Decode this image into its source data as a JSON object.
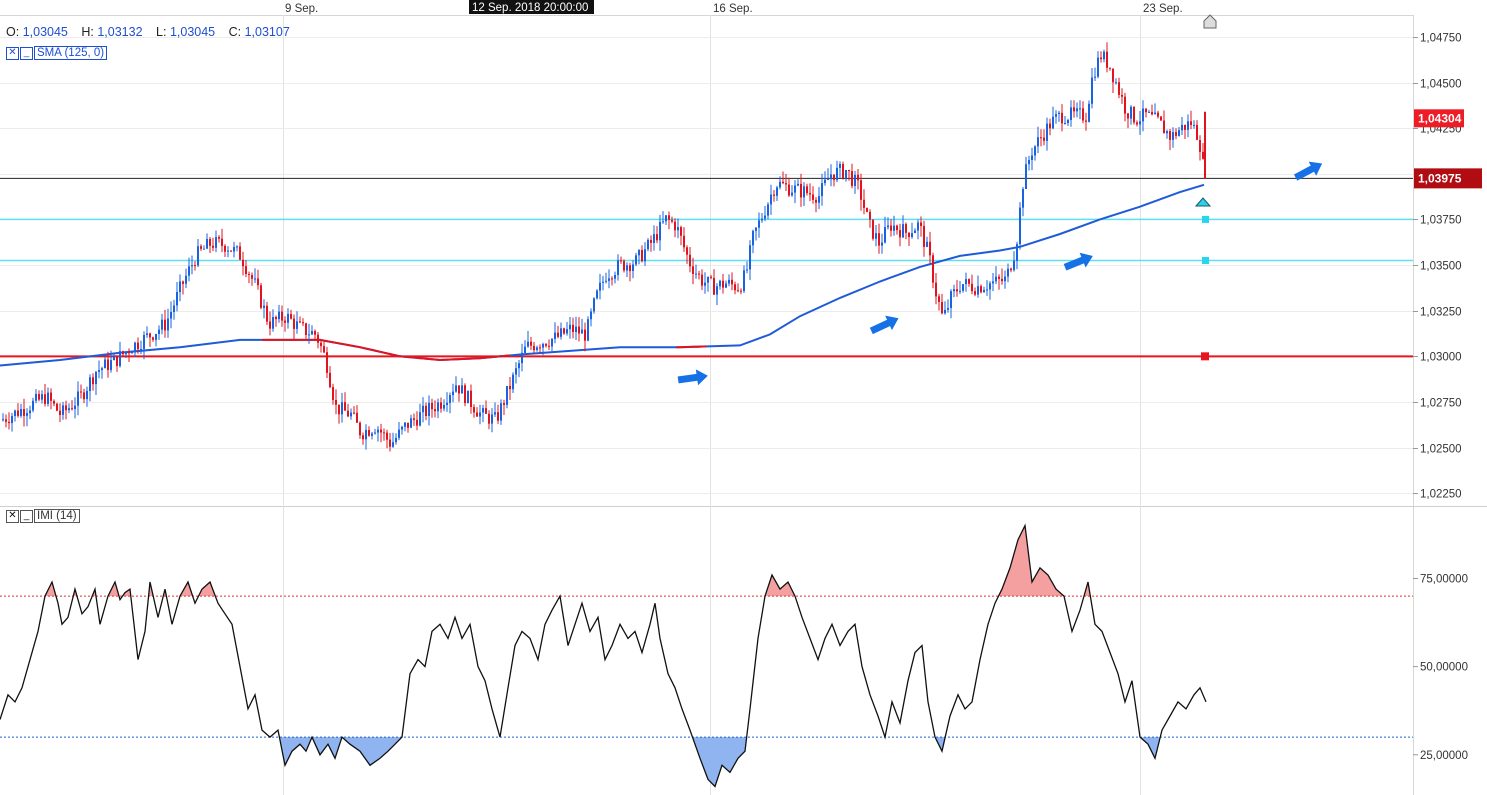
{
  "ohlc": {
    "o_label": "O:",
    "o": "1,03045",
    "h_label": "H:",
    "h": "1,03132",
    "l_label": "L:",
    "l": "1,03045",
    "c_label": "C:",
    "c": "1,03107"
  },
  "indicators": {
    "sma_label": "SMA (125, 0)",
    "imi_label": "IMI (14)",
    "close_glyph": "✕",
    "minimize_glyph": "_"
  },
  "x_axis": {
    "date_labels": [
      "9 Sep.",
      "16 Sep.",
      "23 Sep."
    ],
    "cursor_label": "12 Sep. 2018 20:00:00"
  },
  "price_axis": {
    "ticks": [
      "1,04750",
      "1,04500",
      "1,04250",
      "1,03750",
      "1,03500",
      "1,03250",
      "1,03000",
      "1,02750",
      "1,02500",
      "1,02250"
    ],
    "current_price_label": "1,04304",
    "crosshair_price_label": "1,03975"
  },
  "imi_axis": {
    "ticks": [
      "75,00000",
      "50,00000",
      "25,00000"
    ]
  },
  "colors": {
    "bull": "#1a63e0",
    "bear": "#e0141e",
    "sma": "#1f5bd8",
    "support_red": "#e8141e",
    "cyan": "#5fe0f0",
    "overbought_fill": "#f4a0a0",
    "oversold_fill": "#8fb4ef",
    "price_badge_red": "#ee1c24",
    "price_badge_dark": "#b00c12"
  },
  "chart_data": {
    "type": "candlestick",
    "symbol_timeframe": "hourly",
    "price_axis_range": [
      1.0218,
      1.0487
    ],
    "horizontal_lines": [
      {
        "price": 1.03,
        "color": "red"
      },
      {
        "price": 1.03525,
        "color": "cyan"
      },
      {
        "price": 1.0375,
        "color": "cyan"
      },
      {
        "price": 1.03975,
        "color": "black"
      }
    ],
    "price_path": [
      [
        0,
        1.0265
      ],
      [
        25,
        1.0272
      ],
      [
        45,
        1.0278
      ],
      [
        60,
        1.0268
      ],
      [
        80,
        1.0278
      ],
      [
        95,
        1.0292
      ],
      [
        115,
        1.0298
      ],
      [
        130,
        1.0305
      ],
      [
        150,
        1.0312
      ],
      [
        165,
        1.0318
      ],
      [
        180,
        1.0338
      ],
      [
        195,
        1.0355
      ],
      [
        210,
        1.0362
      ],
      [
        225,
        1.0361
      ],
      [
        240,
        1.0355
      ],
      [
        255,
        1.0338
      ],
      [
        268,
        1.0318
      ],
      [
        285,
        1.0322
      ],
      [
        300,
        1.0315
      ],
      [
        315,
        1.0312
      ],
      [
        325,
        1.0298
      ],
      [
        335,
        1.0272
      ],
      [
        350,
        1.0268
      ],
      [
        360,
        1.0258
      ],
      [
        375,
        1.0262
      ],
      [
        390,
        1.0252
      ],
      [
        405,
        1.0262
      ],
      [
        420,
        1.0268
      ],
      [
        440,
        1.0275
      ],
      [
        455,
        1.0285
      ],
      [
        465,
        1.0278
      ],
      [
        480,
        1.0268
      ],
      [
        495,
        1.0265
      ],
      [
        510,
        1.0285
      ],
      [
        525,
        1.0305
      ],
      [
        540,
        1.0308
      ],
      [
        555,
        1.031
      ],
      [
        570,
        1.0315
      ],
      [
        585,
        1.0312
      ],
      [
        595,
        1.0332
      ],
      [
        605,
        1.0345
      ],
      [
        620,
        1.035
      ],
      [
        635,
        1.0352
      ],
      [
        650,
        1.0362
      ],
      [
        665,
        1.0375
      ],
      [
        675,
        1.0372
      ],
      [
        688,
        1.0352
      ],
      [
        700,
        1.0342
      ],
      [
        712,
        1.0338
      ],
      [
        725,
        1.034
      ],
      [
        738,
        1.0338
      ],
      [
        745,
        1.0345
      ],
      [
        752,
        1.0365
      ],
      [
        765,
        1.0382
      ],
      [
        775,
        1.0395
      ],
      [
        790,
        1.0392
      ],
      [
        805,
        1.039
      ],
      [
        818,
        1.0388
      ],
      [
        830,
        1.04
      ],
      [
        845,
        1.0402
      ],
      [
        858,
        1.0392
      ],
      [
        868,
        1.0372
      ],
      [
        878,
        1.0362
      ],
      [
        890,
        1.0372
      ],
      [
        905,
        1.0368
      ],
      [
        918,
        1.0372
      ],
      [
        928,
        1.0355
      ],
      [
        935,
        1.0335
      ],
      [
        942,
        1.032
      ],
      [
        950,
        1.0332
      ],
      [
        960,
        1.034
      ],
      [
        975,
        1.0338
      ],
      [
        990,
        1.034
      ],
      [
        1005,
        1.0342
      ],
      [
        1015,
        1.036
      ],
      [
        1022,
        1.0395
      ],
      [
        1030,
        1.0412
      ],
      [
        1040,
        1.042
      ],
      [
        1050,
        1.0428
      ],
      [
        1060,
        1.0432
      ],
      [
        1072,
        1.0432
      ],
      [
        1085,
        1.0432
      ],
      [
        1092,
        1.0455
      ],
      [
        1100,
        1.0465
      ],
      [
        1108,
        1.046
      ],
      [
        1115,
        1.045
      ],
      [
        1125,
        1.0435
      ],
      [
        1135,
        1.043
      ],
      [
        1145,
        1.0432
      ],
      [
        1158,
        1.0428
      ],
      [
        1170,
        1.042
      ],
      [
        1180,
        1.0425
      ],
      [
        1190,
        1.0428
      ],
      [
        1198,
        1.042
      ],
      [
        1204,
        1.03975
      ]
    ],
    "sma_path": [
      [
        0,
        1.0295
      ],
      [
        60,
        1.0298
      ],
      [
        120,
        1.0302
      ],
      [
        180,
        1.0305
      ],
      [
        240,
        1.0309
      ],
      [
        265,
        1.0309
      ],
      [
        320,
        1.0309
      ],
      [
        360,
        1.0305
      ],
      [
        400,
        1.03
      ],
      [
        440,
        1.0298
      ],
      [
        480,
        1.0299
      ],
      [
        520,
        1.0301
      ],
      [
        570,
        1.0303
      ],
      [
        620,
        1.0305
      ],
      [
        680,
        1.0305
      ],
      [
        740,
        1.0306
      ],
      [
        770,
        1.0312
      ],
      [
        800,
        1.0322
      ],
      [
        840,
        1.0332
      ],
      [
        880,
        1.0341
      ],
      [
        920,
        1.0349
      ],
      [
        960,
        1.0355
      ],
      [
        1000,
        1.0358
      ],
      [
        1020,
        1.036
      ],
      [
        1060,
        1.0367
      ],
      [
        1100,
        1.0375
      ],
      [
        1140,
        1.0382
      ],
      [
        1180,
        1.039
      ],
      [
        1204,
        1.0394
      ]
    ],
    "imi": {
      "range": [
        15,
        95
      ],
      "overbought": 70,
      "oversold": 30,
      "path": [
        [
          0,
          35
        ],
        [
          8,
          42
        ],
        [
          15,
          40
        ],
        [
          22,
          44
        ],
        [
          30,
          52
        ],
        [
          38,
          60
        ],
        [
          45,
          70
        ],
        [
          52,
          74
        ],
        [
          58,
          68
        ],
        [
          62,
          62
        ],
        [
          68,
          64
        ],
        [
          75,
          72
        ],
        [
          82,
          65
        ],
        [
          88,
          67
        ],
        [
          95,
          72
        ],
        [
          100,
          62
        ],
        [
          108,
          70
        ],
        [
          115,
          74
        ],
        [
          120,
          69
        ],
        [
          125,
          71
        ],
        [
          130,
          72
        ],
        [
          138,
          52
        ],
        [
          145,
          60
        ],
        [
          150,
          74
        ],
        [
          158,
          64
        ],
        [
          165,
          72
        ],
        [
          172,
          62
        ],
        [
          180,
          70
        ],
        [
          188,
          74
        ],
        [
          195,
          68
        ],
        [
          202,
          72
        ],
        [
          210,
          74
        ],
        [
          218,
          68
        ],
        [
          225,
          65
        ],
        [
          232,
          62
        ],
        [
          240,
          50
        ],
        [
          248,
          38
        ],
        [
          255,
          42
        ],
        [
          262,
          32
        ],
        [
          270,
          30
        ],
        [
          278,
          32
        ],
        [
          285,
          22
        ],
        [
          292,
          26
        ],
        [
          300,
          28
        ],
        [
          306,
          26
        ],
        [
          312,
          30
        ],
        [
          320,
          25
        ],
        [
          328,
          28
        ],
        [
          335,
          24
        ],
        [
          342,
          30
        ],
        [
          350,
          28
        ],
        [
          360,
          26
        ],
        [
          370,
          22
        ],
        [
          380,
          24
        ],
        [
          388,
          26
        ],
        [
          395,
          28
        ],
        [
          402,
          30
        ],
        [
          410,
          48
        ],
        [
          418,
          52
        ],
        [
          425,
          50
        ],
        [
          432,
          60
        ],
        [
          440,
          62
        ],
        [
          448,
          58
        ],
        [
          455,
          64
        ],
        [
          462,
          58
        ],
        [
          470,
          62
        ],
        [
          478,
          50
        ],
        [
          485,
          46
        ],
        [
          492,
          38
        ],
        [
          500,
          30
        ],
        [
          508,
          44
        ],
        [
          515,
          56
        ],
        [
          522,
          60
        ],
        [
          530,
          58
        ],
        [
          538,
          52
        ],
        [
          545,
          62
        ],
        [
          552,
          66
        ],
        [
          560,
          70
        ],
        [
          568,
          56
        ],
        [
          575,
          62
        ],
        [
          582,
          68
        ],
        [
          590,
          60
        ],
        [
          598,
          64
        ],
        [
          605,
          52
        ],
        [
          612,
          56
        ],
        [
          620,
          62
        ],
        [
          628,
          58
        ],
        [
          635,
          60
        ],
        [
          642,
          54
        ],
        [
          650,
          62
        ],
        [
          655,
          68
        ],
        [
          660,
          58
        ],
        [
          668,
          48
        ],
        [
          675,
          44
        ],
        [
          682,
          38
        ],
        [
          690,
          32
        ],
        [
          700,
          24
        ],
        [
          708,
          18
        ],
        [
          715,
          16
        ],
        [
          722,
          22
        ],
        [
          730,
          20
        ],
        [
          738,
          24
        ],
        [
          745,
          26
        ],
        [
          750,
          38
        ],
        [
          758,
          58
        ],
        [
          765,
          70
        ],
        [
          772,
          76
        ],
        [
          780,
          72
        ],
        [
          788,
          74
        ],
        [
          795,
          70
        ],
        [
          802,
          64
        ],
        [
          810,
          58
        ],
        [
          818,
          52
        ],
        [
          825,
          58
        ],
        [
          832,
          62
        ],
        [
          840,
          56
        ],
        [
          848,
          60
        ],
        [
          855,
          62
        ],
        [
          862,
          50
        ],
        [
          870,
          42
        ],
        [
          878,
          36
        ],
        [
          885,
          30
        ],
        [
          892,
          40
        ],
        [
          900,
          34
        ],
        [
          908,
          46
        ],
        [
          915,
          54
        ],
        [
          922,
          56
        ],
        [
          928,
          40
        ],
        [
          935,
          30
        ],
        [
          942,
          26
        ],
        [
          950,
          36
        ],
        [
          958,
          42
        ],
        [
          965,
          38
        ],
        [
          972,
          40
        ],
        [
          980,
          52
        ],
        [
          988,
          62
        ],
        [
          995,
          68
        ],
        [
          1002,
          72
        ],
        [
          1010,
          78
        ],
        [
          1018,
          86
        ],
        [
          1025,
          90
        ],
        [
          1032,
          74
        ],
        [
          1040,
          78
        ],
        [
          1048,
          76
        ],
        [
          1056,
          72
        ],
        [
          1064,
          70
        ],
        [
          1072,
          60
        ],
        [
          1080,
          66
        ],
        [
          1088,
          74
        ],
        [
          1095,
          62
        ],
        [
          1102,
          60
        ],
        [
          1110,
          54
        ],
        [
          1118,
          48
        ],
        [
          1125,
          40
        ],
        [
          1132,
          46
        ],
        [
          1140,
          30
        ],
        [
          1148,
          28
        ],
        [
          1155,
          24
        ],
        [
          1162,
          32
        ],
        [
          1170,
          36
        ],
        [
          1178,
          40
        ],
        [
          1186,
          38
        ],
        [
          1194,
          42
        ],
        [
          1200,
          44
        ],
        [
          1206,
          40
        ]
      ]
    }
  }
}
